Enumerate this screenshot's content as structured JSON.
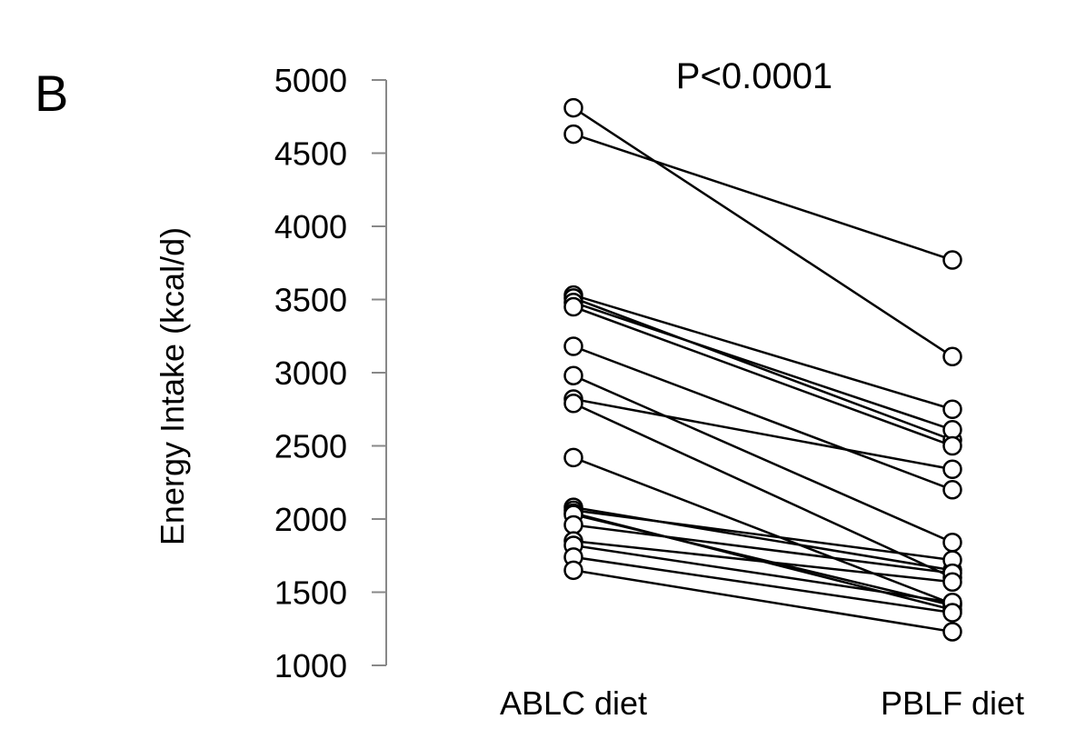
{
  "panel_label": "B",
  "chart_data": {
    "type": "scatter",
    "subtype": "paired-lines",
    "title": "",
    "annotation": "P<0.0001",
    "xlabel": "",
    "ylabel": "Energy Intake (kcal/d)",
    "categories": [
      "ABLC diet",
      "PBLF diet"
    ],
    "ylim": [
      1000,
      5000
    ],
    "yticks": [
      "1000",
      "1500",
      "2000",
      "2500",
      "3000",
      "3500",
      "4000",
      "4500",
      "5000"
    ],
    "grid": false,
    "marker": "open-circle",
    "line_color": "#000000",
    "pairs": [
      {
        "ablc": 4810,
        "pblf": 3110
      },
      {
        "ablc": 4630,
        "pblf": 3770
      },
      {
        "ablc": 3530,
        "pblf": 2750
      },
      {
        "ablc": 3510,
        "pblf": 2540
      },
      {
        "ablc": 3480,
        "pblf": 2610
      },
      {
        "ablc": 3450,
        "pblf": 2500
      },
      {
        "ablc": 3180,
        "pblf": 2200
      },
      {
        "ablc": 2980,
        "pblf": 1840
      },
      {
        "ablc": 2820,
        "pblf": 2340
      },
      {
        "ablc": 2790,
        "pblf": 1600
      },
      {
        "ablc": 2420,
        "pblf": 1420
      },
      {
        "ablc": 2080,
        "pblf": 1650
      },
      {
        "ablc": 2060,
        "pblf": 1720
      },
      {
        "ablc": 2040,
        "pblf": 1380
      },
      {
        "ablc": 2030,
        "pblf": 1410
      },
      {
        "ablc": 1960,
        "pblf": 1630
      },
      {
        "ablc": 1850,
        "pblf": 1570
      },
      {
        "ablc": 1820,
        "pblf": 1430
      },
      {
        "ablc": 1740,
        "pblf": 1360
      },
      {
        "ablc": 1650,
        "pblf": 1230
      }
    ]
  }
}
